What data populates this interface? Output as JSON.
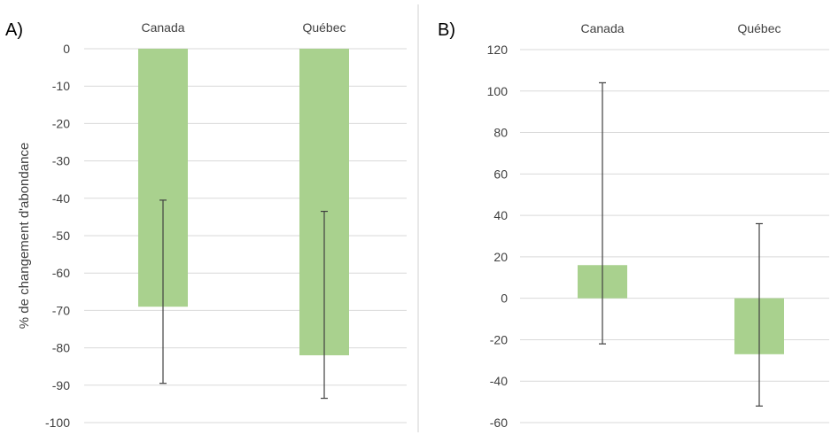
{
  "chart_data": [
    {
      "type": "bar",
      "panel_label": "A)",
      "categories": [
        "Canada",
        "Québec"
      ],
      "series": [
        {
          "values": [
            -69,
            -82
          ],
          "error_low": [
            -89.5,
            -93.5
          ],
          "error_high": [
            -40.5,
            -43.5
          ]
        }
      ],
      "ylabel": "% de changement d'abondance",
      "ylim": [
        -100,
        0
      ],
      "yticks": [
        0,
        -10,
        -20,
        -30,
        -40,
        -50,
        -60,
        -70,
        -80,
        -90,
        -100
      ],
      "category_axis_position": "top",
      "grid": true,
      "legend": "none",
      "bar_color": "#a9d18e"
    },
    {
      "type": "bar",
      "panel_label": "B)",
      "categories": [
        "Canada",
        "Québec"
      ],
      "series": [
        {
          "values": [
            16,
            -27
          ],
          "error_low": [
            -22,
            -52
          ],
          "error_high": [
            104,
            36
          ]
        }
      ],
      "ylabel": "",
      "ylim": [
        -60,
        120
      ],
      "yticks": [
        120,
        100,
        80,
        60,
        40,
        20,
        0,
        -20,
        -40,
        -60
      ],
      "category_axis_position": "top",
      "grid": true,
      "legend": "none",
      "bar_color": "#a9d18e"
    }
  ]
}
